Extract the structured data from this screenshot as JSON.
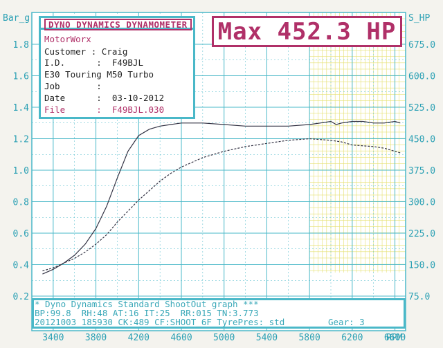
{
  "header": {
    "brand": "DYNO DYNAMICS DYNAMOMETER",
    "max_label": "Max 452.3 HP"
  },
  "info": {
    "shop": "MotorWorx",
    "customer": "Customer : Craig",
    "id": "I.D.      :  F49BJL",
    "vehicle": "E30 Touring M50 Turbo",
    "job": "Job       :",
    "date": "Date      :  03-10-2012",
    "file": "File      :  F49BJL.030"
  },
  "footer": {
    "line1": "* Dyno Dynamics Standard ShootOut graph ***",
    "line2": "BP:99.8  RH:48 AT:16 IT:25  RR:015 TN:3.773",
    "line3": "20121003 185930 CK:489 CF:SHOOT_6F TyrePres: std",
    "gear": "Gear: 3"
  },
  "chart_data": {
    "type": "line",
    "left_axis": {
      "label": "Bar_g",
      "range": [
        0.2,
        1.8
      ],
      "ticks": [
        "1.8",
        "1.6",
        "1.4",
        "1.2",
        "1.0",
        "0.8",
        "0.6",
        "0.4",
        "0.2"
      ]
    },
    "right_axis": {
      "label": "S_HP",
      "range": [
        75.0,
        675.0
      ],
      "ticks": [
        "675.0",
        "600.0",
        "525.0",
        "450.0",
        "375.0",
        "300.0",
        "225.0",
        "150.0",
        "75.0"
      ]
    },
    "x_axis": {
      "label": "RPM",
      "range": [
        3200,
        6700
      ],
      "ticks": [
        "3400",
        "3800",
        "4200",
        "4600",
        "5000",
        "5400",
        "5800",
        "6200",
        "6600"
      ]
    },
    "grid": true,
    "series": [
      {
        "style": "solid",
        "axis": "left",
        "x": [
          3300,
          3400,
          3500,
          3600,
          3700,
          3800,
          3900,
          4000,
          4100,
          4200,
          4300,
          4400,
          4500,
          4600,
          4700,
          4800,
          5000,
          5200,
          5400,
          5600,
          5800,
          5900,
          6000,
          6050,
          6100,
          6200,
          6300,
          6400,
          6500,
          6600,
          6650
        ],
        "y": [
          0.34,
          0.37,
          0.41,
          0.46,
          0.53,
          0.63,
          0.77,
          0.95,
          1.12,
          1.22,
          1.26,
          1.28,
          1.29,
          1.3,
          1.3,
          1.3,
          1.29,
          1.28,
          1.28,
          1.28,
          1.29,
          1.3,
          1.31,
          1.29,
          1.3,
          1.31,
          1.31,
          1.3,
          1.3,
          1.31,
          1.3
        ]
      },
      {
        "style": "dashed",
        "axis": "left",
        "x": [
          3300,
          3400,
          3500,
          3600,
          3700,
          3800,
          3900,
          4000,
          4100,
          4200,
          4300,
          4400,
          4500,
          4600,
          4800,
          5000,
          5200,
          5400,
          5600,
          5800,
          6000,
          6100,
          6200,
          6400,
          6500,
          6600,
          6650
        ],
        "y": [
          0.36,
          0.38,
          0.41,
          0.44,
          0.48,
          0.53,
          0.59,
          0.67,
          0.74,
          0.81,
          0.87,
          0.93,
          0.98,
          1.02,
          1.08,
          1.12,
          1.15,
          1.17,
          1.19,
          1.2,
          1.19,
          1.18,
          1.16,
          1.15,
          1.14,
          1.12,
          1.11
        ]
      }
    ]
  },
  "colors": {
    "grid_cyan": "#4ab8c8",
    "grid_yellow": "#e6e070",
    "accent": "#b03068",
    "curve": "#333344"
  }
}
